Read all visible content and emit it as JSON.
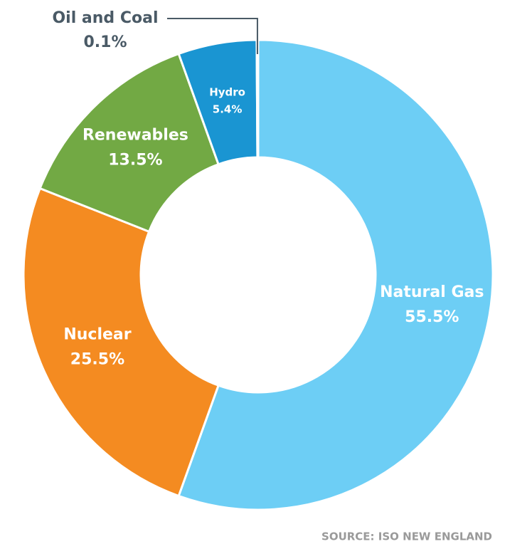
{
  "chart_data": {
    "type": "donut",
    "categories": [
      "Natural Gas",
      "Nuclear",
      "Renewables",
      "Hydro",
      "Oil and Coal"
    ],
    "values": [
      55.5,
      25.5,
      13.5,
      5.4,
      0.1
    ],
    "value_labels": [
      "55.5%",
      "25.5%",
      "13.5%",
      "5.4%",
      "0.1%"
    ],
    "colors": [
      "#6dcef5",
      "#f48b21",
      "#72a944",
      "#1a95d2",
      "#4a5a66"
    ],
    "source": "SOURCE: ISO NEW ENGLAND"
  }
}
